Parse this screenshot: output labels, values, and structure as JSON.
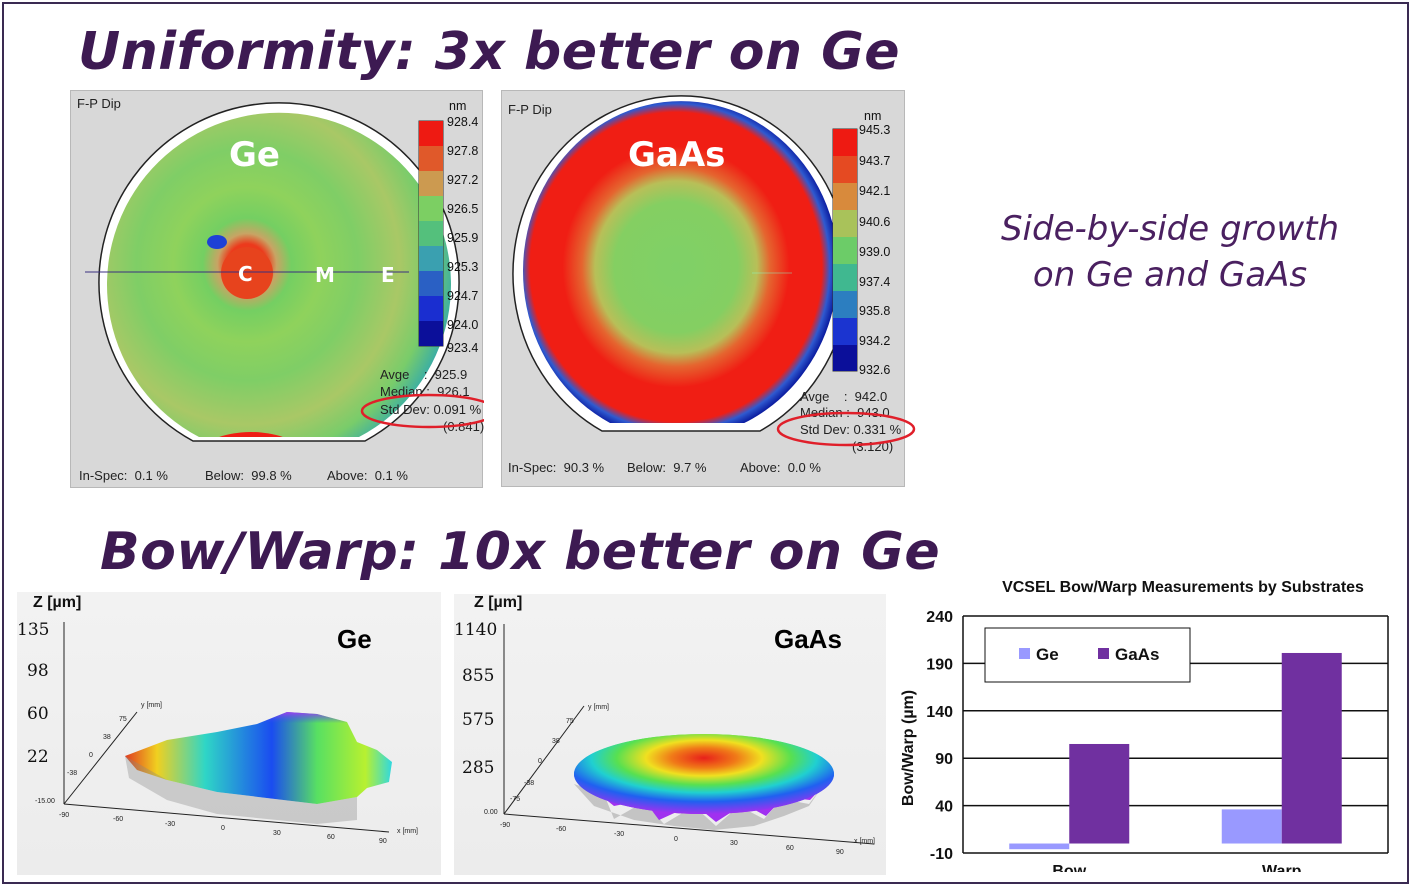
{
  "headings": {
    "uniformity": "Uniformity:  3x better on Ge",
    "bowwarp": "Bow/Warp:  10x better on Ge"
  },
  "note": {
    "line1": "Side-by-side growth",
    "line2": "on Ge and GaAs"
  },
  "maps": {
    "ge": {
      "panel_title": "F-P Dip",
      "label": "Ge",
      "markers": [
        "C",
        "M",
        "E"
      ],
      "unit": "nm",
      "scale": [
        "928.4",
        "927.8",
        "927.2",
        "926.5",
        "925.9",
        "925.3",
        "924.7",
        "924.0",
        "923.4"
      ],
      "stats": {
        "avge": "Avge    :  925.9",
        "median": "Median :  926.1",
        "stddev": "Std Dev: 0.091 %",
        "extra": "(0.841)"
      },
      "footer": {
        "inspec": "In-Spec:  0.1 %",
        "below": "Below:  99.8 %",
        "above": "Above:  0.1 %"
      }
    },
    "gaas": {
      "panel_title": "F-P Dip",
      "label": "GaAs",
      "unit": "nm",
      "scale": [
        "945.3",
        "943.7",
        "942.1",
        "940.6",
        "939.0",
        "937.4",
        "935.8",
        "934.2",
        "932.6"
      ],
      "stats": {
        "avge": "Avge    :  942.0",
        "median": "Median :  943.0",
        "stddev": "Std Dev: 0.331 %",
        "extra": "(3.120)"
      },
      "footer": {
        "inspec": "In-Spec:  90.3 %",
        "below": "Below:  9.7 %",
        "above": "Above:  0.0 %"
      }
    }
  },
  "surfaces": {
    "ge": {
      "title": "Ge",
      "z_label": "Z [µm]",
      "z_ticks": [
        "135",
        "98",
        "60",
        "22"
      ],
      "axis_small": {
        "z0": "-15.00",
        "y": "y [mm]",
        "x": "x [mm]"
      },
      "x_ticks": [
        "-90",
        "-60",
        "-30",
        "0",
        "30",
        "60",
        "90"
      ],
      "y_ticks": [
        "-38",
        "0",
        "38",
        "75"
      ]
    },
    "gaas": {
      "title": "GaAs",
      "z_label": "Z [µm]",
      "z_ticks": [
        "1140",
        "855",
        "575",
        "285"
      ],
      "axis_small": {
        "z0": "0.00",
        "y": "y [mm]",
        "x": "x [mm]"
      },
      "x_ticks": [
        "-90",
        "-60",
        "-30",
        "0",
        "30",
        "60",
        "90"
      ],
      "y_ticks": [
        "-75",
        "-38",
        "0",
        "38",
        "75"
      ]
    }
  },
  "chart_data": {
    "type": "bar",
    "title": "VCSEL Bow/Warp Measurements by Substrates",
    "ylabel": "Bow/Warp (µm)",
    "xlabel": "",
    "categories": [
      "Bow",
      "Warp"
    ],
    "series": [
      {
        "name": "Ge",
        "values": [
          -6,
          36
        ],
        "color": "#9999ff"
      },
      {
        "name": "GaAs",
        "values": [
          105,
          201
        ],
        "color": "#7030a0"
      }
    ],
    "ylim": [
      -10,
      240
    ],
    "yticks": [
      -10,
      40,
      90,
      140,
      190,
      240
    ],
    "grid": true,
    "legend": "top-left"
  }
}
